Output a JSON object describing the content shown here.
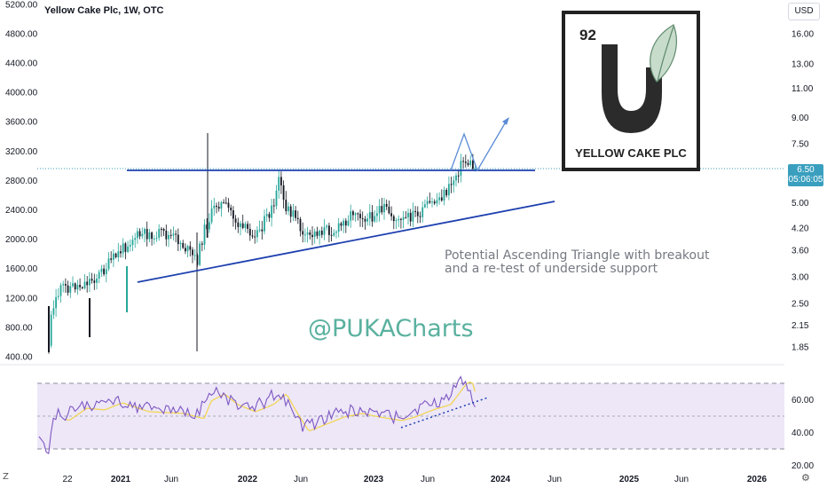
{
  "header": {
    "title": "Yellow Cake Plc, 1W, OTC",
    "currency": "USD"
  },
  "last_price": {
    "value": "6.50",
    "countdown": "05:06:05"
  },
  "logo": {
    "number": "92",
    "letter": "U",
    "name": "YELLOW CAKE PLC"
  },
  "annotations": {
    "pattern_line1": "Potential Ascending Triangle with breakout",
    "pattern_line2": "and a re-test of underside support",
    "watermark": "@PUKACharts"
  },
  "colors": {
    "up": "#26a69a",
    "down": "#131722",
    "trend": "#1e40af",
    "projection": "#5b8bd6",
    "rsi": "#7e57c2",
    "rsi_ma": "#f2d44a",
    "rsi_band": "#ede7f8",
    "price_tag": "#3a9fbf"
  },
  "chart_data": [
    {
      "type": "candlestick",
      "title": "Yellow Cake Plc, 1W, OTC",
      "left_axis_ticks": [
        "400.00",
        "800.00",
        "1200.00",
        "1600.00",
        "2000.00",
        "2400.00",
        "2800.00",
        "3200.00",
        "3600.00",
        "4000.00",
        "4400.00",
        "4800.00",
        "5200.00"
      ],
      "right_axis_ticks": [
        "1.85",
        "2.15",
        "2.50",
        "3.00",
        "3.60",
        "4.20",
        "5.00",
        "6.00",
        "7.50",
        "9.00",
        "11.00",
        "13.00",
        "16.00"
      ],
      "ylim": [
        300,
        5250
      ],
      "ylim_right": [
        1.7,
        19
      ],
      "y_scale_right": "log",
      "x_ticks": [
        "22",
        "2021",
        "Jun",
        "2022",
        "Jun",
        "2023",
        "Jun",
        "2024",
        "Jun",
        "2025",
        "Jun",
        "2026"
      ],
      "x_range": [
        "2020-10",
        "2026-06"
      ],
      "resistance": 2960,
      "support_trendline": [
        {
          "x": "2021-02",
          "y": 1010
        },
        {
          "x": "2024-06",
          "y": 2530
        }
      ],
      "projection": [
        {
          "x": "2023-09",
          "y": 2960
        },
        {
          "x": "2023-10",
          "y": 3470
        },
        {
          "x": "2023-11",
          "y": 2960
        },
        {
          "x": "2024-01",
          "y": 3850
        }
      ],
      "last_price": 6.5,
      "grid": false
    },
    {
      "type": "line",
      "title": "RSI",
      "y_ticks": [
        "20.00",
        "40.00",
        "60.00"
      ],
      "ylim": [
        18,
        78
      ],
      "bands": [
        30,
        50,
        70
      ],
      "trendline": [
        {
          "x": "2023-03",
          "y": 43
        },
        {
          "x": "2023-11",
          "y": 60
        }
      ]
    }
  ]
}
